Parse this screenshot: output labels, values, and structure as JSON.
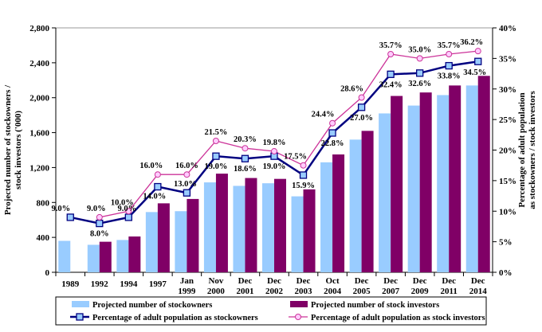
{
  "chart_data": {
    "type": "bar",
    "categories": [
      [
        "1989"
      ],
      [
        "1992"
      ],
      [
        "1994"
      ],
      [
        "1997"
      ],
      [
        "Jan",
        "1999"
      ],
      [
        "Nov",
        "2000"
      ],
      [
        "Dec",
        "2001"
      ],
      [
        "Dec",
        "2002"
      ],
      [
        "Dec",
        "2003"
      ],
      [
        "Oct",
        "2004"
      ],
      [
        "Dec",
        "2005"
      ],
      [
        "Dec",
        "2007"
      ],
      [
        "Dec",
        "2009"
      ],
      [
        "Dec",
        "2011"
      ],
      [
        "Dec",
        "2014"
      ]
    ],
    "left_axis": {
      "label_lines": [
        "Projected number of stockowners /",
        "stock investors ('000)"
      ],
      "ylim": [
        0,
        2800
      ],
      "ticks": [
        "0",
        "400",
        "800",
        "1,200",
        "1,600",
        "2,000",
        "2,400",
        "2,800"
      ]
    },
    "right_axis": {
      "label_lines": [
        "Percentage of adult population",
        "as stockowners / stock investors"
      ],
      "ylim": [
        0,
        40
      ],
      "ticks": [
        "0%",
        "5%",
        "10%",
        "15%",
        "20%",
        "25%",
        "30%",
        "35%",
        "40%"
      ]
    },
    "bar_series": [
      {
        "name": "Projected number of stockowners",
        "color": "#99ccff",
        "values": [
          360,
          315,
          370,
          690,
          700,
          1030,
          990,
          1020,
          870,
          1260,
          1520,
          1820,
          1910,
          2030,
          2140
        ]
      },
      {
        "name": "Projected number of stock investors",
        "color": "#800066",
        "values": [
          null,
          350,
          410,
          790,
          840,
          1130,
          1080,
          1070,
          950,
          1350,
          1620,
          2020,
          2060,
          2140,
          2250
        ]
      }
    ],
    "line_series": [
      {
        "name": "Percentage of adult population as stockowners",
        "color": "#000080",
        "marker": "square",
        "marker_fill": "#99ccff",
        "values": [
          9.0,
          8.0,
          9.0,
          14.0,
          13.0,
          19.0,
          18.6,
          19.0,
          15.9,
          22.8,
          27.0,
          32.4,
          32.6,
          33.8,
          34.5
        ],
        "labels": [
          "9.0%",
          "8.0%",
          "9.0%",
          "14.0%",
          "13.0%",
          "19.0%",
          "18.6%",
          "19.0%",
          "15.9%",
          "22.8%",
          "27.0%",
          "32.4%",
          "32.6%",
          "33.8%",
          "34.5%"
        ]
      },
      {
        "name": "Percentage of adult population as stock investors",
        "color": "#cc3399",
        "marker": "circle",
        "marker_fill": "#ffccff",
        "values": [
          null,
          9.0,
          10.0,
          16.0,
          16.0,
          21.5,
          20.3,
          19.8,
          17.5,
          24.4,
          28.6,
          35.7,
          35.0,
          35.7,
          36.2
        ],
        "labels": [
          "",
          "9.0%",
          "10.0%",
          "16.0%",
          "16.0%",
          "21.5%",
          "20.3%",
          "19.8%",
          "17.5%",
          "24.4%",
          "28.6%",
          "35.7%",
          "35.0%",
          "35.7%",
          "36.2%"
        ]
      }
    ],
    "legend_position": "bottom",
    "grid": false
  }
}
